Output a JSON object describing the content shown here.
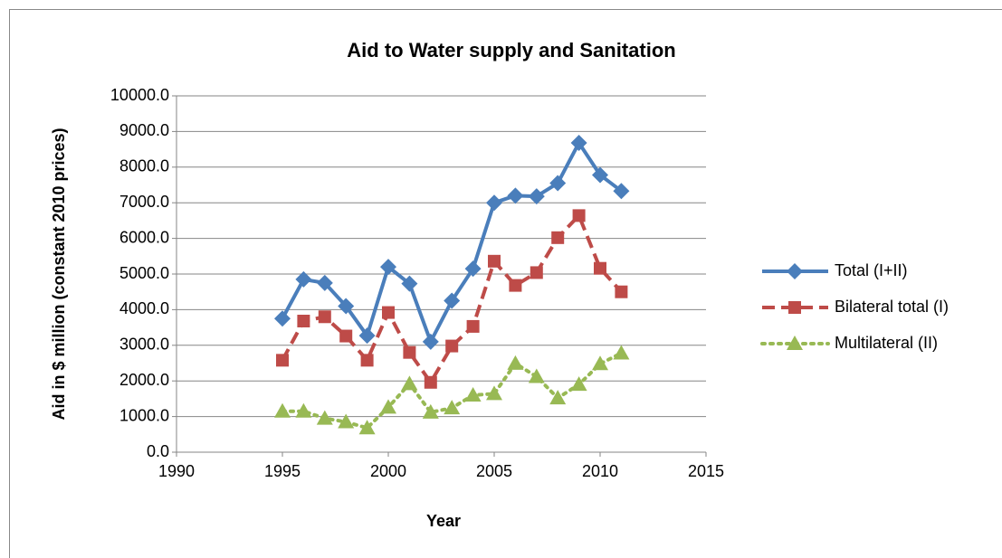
{
  "chart_data": {
    "type": "line",
    "title": "Aid to Water supply and Sanitation",
    "xlabel": "Year",
    "ylabel": "Aid in $ million (constant 2010 prices)",
    "x": [
      1995,
      1996,
      1997,
      1998,
      1999,
      2000,
      2001,
      2002,
      2003,
      2004,
      2005,
      2006,
      2007,
      2008,
      2009,
      2010,
      2011
    ],
    "series": [
      {
        "name": "Total (I+II)",
        "color": "#4a7ebb",
        "dash": "solid",
        "marker": "diamond",
        "values": [
          3750,
          4850,
          4750,
          4100,
          3270,
          5200,
          4730,
          3100,
          4250,
          5150,
          7000,
          7200,
          7180,
          7550,
          8680,
          7780,
          7330
        ]
      },
      {
        "name": "Bilateral total (I)",
        "color": "#be4b48",
        "dash": "dashed",
        "marker": "square",
        "values": [
          2580,
          3680,
          3800,
          3260,
          2580,
          3920,
          2800,
          1960,
          2980,
          3530,
          5360,
          4680,
          5040,
          6020,
          6640,
          5160,
          4500
        ]
      },
      {
        "name": "Multilateral (II)",
        "color": "#98b954",
        "dash": "dotted",
        "marker": "triangle",
        "values": [
          1150,
          1150,
          950,
          850,
          680,
          1260,
          1920,
          1120,
          1240,
          1600,
          1640,
          2490,
          2120,
          1520,
          1900,
          2480,
          2780
        ]
      }
    ],
    "xlim": [
      1990,
      2015
    ],
    "xticks": [
      1990,
      1995,
      2000,
      2005,
      2010,
      2015
    ],
    "ylim": [
      0,
      10000
    ],
    "yticks": [
      {
        "value": 0,
        "label": "0.0"
      },
      {
        "value": 1000,
        "label": "1000.0"
      },
      {
        "value": 2000,
        "label": "2000.0"
      },
      {
        "value": 3000,
        "label": "3000.0"
      },
      {
        "value": 4000,
        "label": "4000.0"
      },
      {
        "value": 5000,
        "label": "5000.0"
      },
      {
        "value": 6000,
        "label": "6000.0"
      },
      {
        "value": 7000,
        "label": "7000.0"
      },
      {
        "value": 8000,
        "label": "8000.0"
      },
      {
        "value": 9000,
        "label": "9000.0"
      },
      {
        "value": 10000,
        "label": "10000.0"
      }
    ],
    "grid": true,
    "legend": "right"
  }
}
